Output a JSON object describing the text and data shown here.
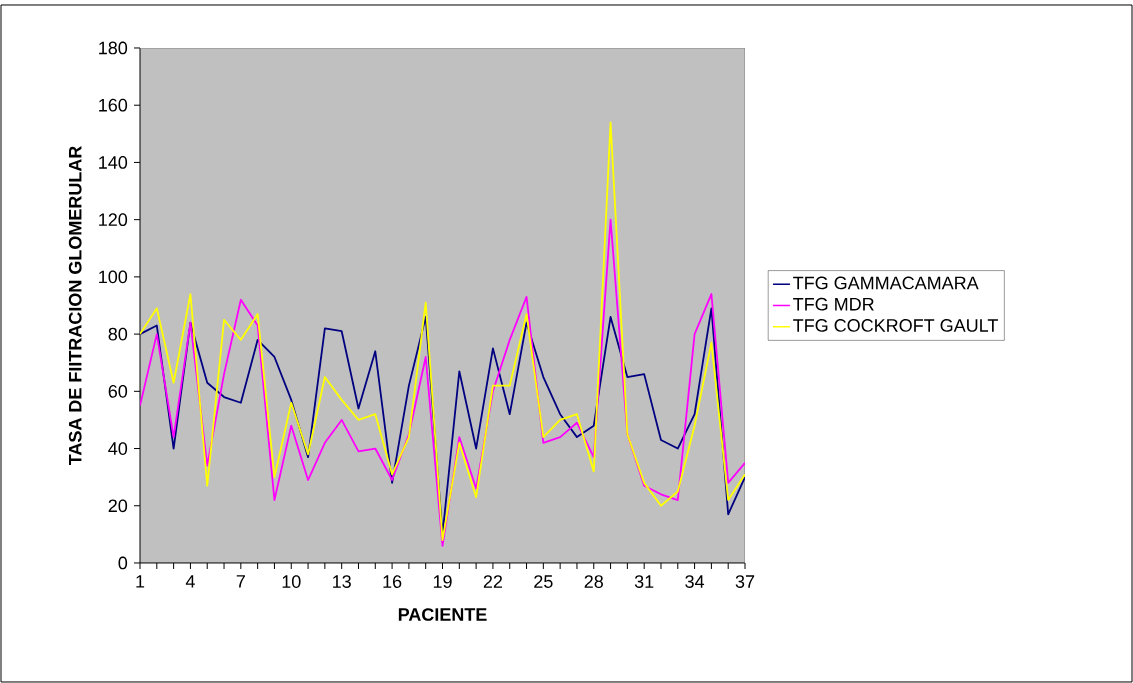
{
  "chart_data": {
    "type": "line",
    "xlabel": "PACIENTE",
    "ylabel": "TASA DE FIITRACION GLOMERULAR",
    "categories": [
      "1",
      null,
      null,
      "4",
      null,
      null,
      "7",
      null,
      null,
      "10",
      null,
      null,
      "13",
      null,
      null,
      "16",
      null,
      null,
      "19",
      null,
      null,
      "22",
      null,
      null,
      "25",
      null,
      null,
      "28",
      null,
      null,
      "31",
      null,
      null,
      "34",
      null,
      null,
      "37"
    ],
    "series": [
      {
        "name": "TFG GAMMACAMARA",
        "color": "#000080",
        "values": [
          80,
          83,
          40,
          84,
          63,
          58,
          56,
          78,
          72,
          57,
          37,
          82,
          81,
          54,
          74,
          28,
          62,
          86,
          10,
          67,
          40,
          75,
          52,
          84,
          65,
          52,
          44,
          48,
          86,
          65,
          66,
          43,
          40,
          52,
          89,
          17,
          30
        ]
      },
      {
        "name": "TFG MDR",
        "color": "#ff00ff",
        "values": [
          55,
          80,
          44,
          84,
          34,
          66,
          92,
          83,
          22,
          48,
          29,
          42,
          50,
          39,
          40,
          29,
          45,
          72,
          6,
          44,
          26,
          60,
          78,
          93,
          42,
          44,
          49,
          37,
          120,
          45,
          27,
          24,
          22,
          80,
          94,
          28,
          35
        ]
      },
      {
        "name": "TFG COCKROFT GAULT",
        "color": "#ffff00",
        "values": [
          80,
          89,
          63,
          94,
          27,
          85,
          78,
          87,
          30,
          56,
          38,
          65,
          57,
          50,
          52,
          31,
          44,
          91,
          8,
          42,
          23,
          62,
          62,
          87,
          44,
          50,
          52,
          32,
          154,
          45,
          28,
          20,
          25,
          48,
          77,
          22,
          31
        ]
      }
    ],
    "ylim": [
      0,
      180
    ],
    "yticks": [
      0,
      20,
      40,
      60,
      80,
      100,
      120,
      140,
      160,
      180
    ],
    "legend": "right",
    "grid": false
  }
}
